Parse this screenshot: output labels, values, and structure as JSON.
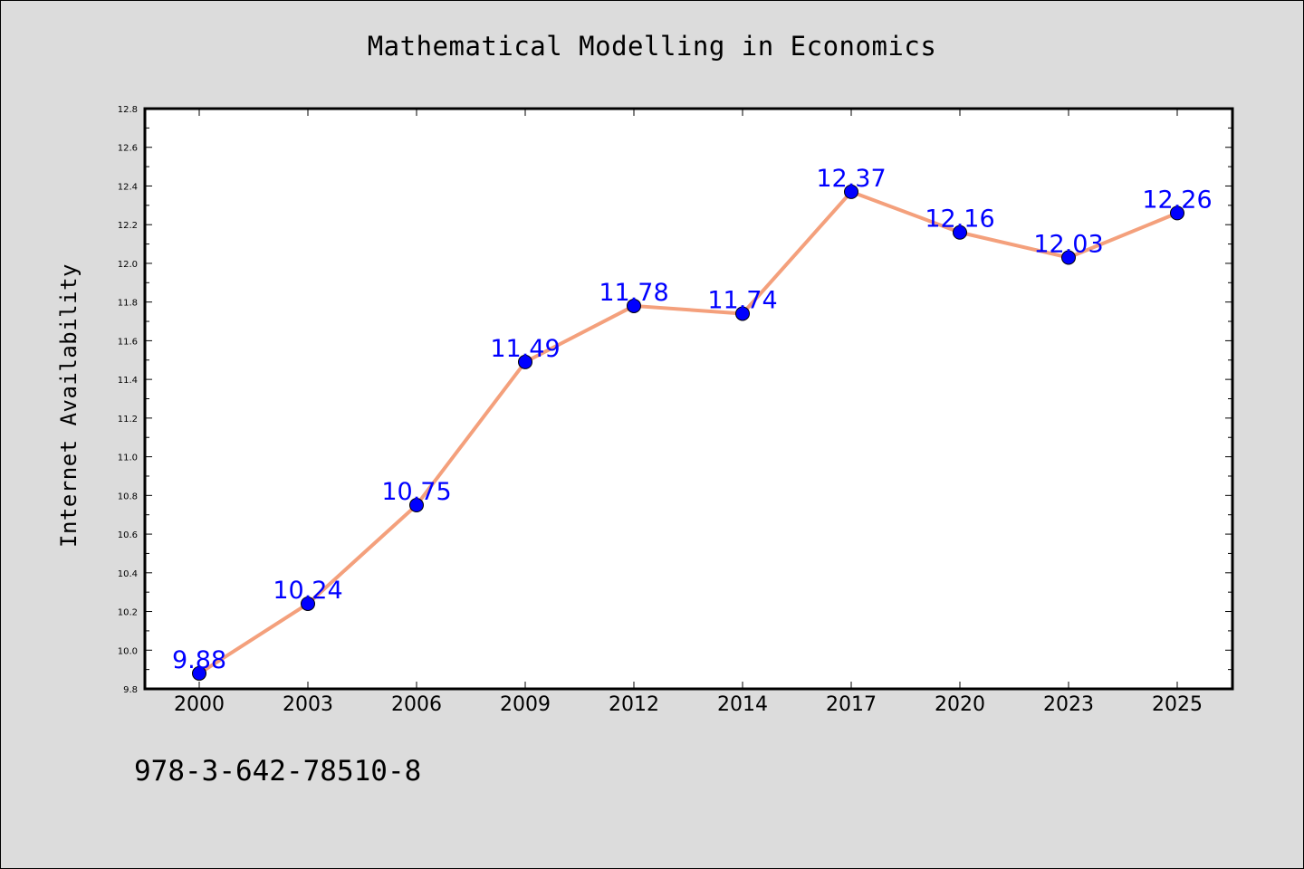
{
  "chart_data": {
    "type": "line",
    "title": "Mathematical Modelling in Economics",
    "xlabel": "",
    "ylabel": "Internet Availability",
    "categories": [
      "2000",
      "2003",
      "2006",
      "2009",
      "2012",
      "2014",
      "2017",
      "2020",
      "2023",
      "2025"
    ],
    "series": [
      {
        "values": [
          9.88,
          10.24,
          10.75,
          11.49,
          11.78,
          11.74,
          12.37,
          12.16,
          12.03,
          12.26
        ],
        "line_color": "#f4a07c",
        "marker_color": "#0000ff"
      }
    ],
    "data_labels": [
      "9.88",
      "10.24",
      "10.75",
      "11.49",
      "11.78",
      "11.74",
      "12.37",
      "12.16",
      "12.03",
      "12.26"
    ],
    "ylim": [
      9.8,
      12.8
    ],
    "yticks": [
      "9.8",
      "10.0",
      "10.2",
      "10.4",
      "10.6",
      "10.8",
      "11.0",
      "11.2",
      "11.4",
      "11.6",
      "11.8",
      "12.0",
      "12.2",
      "12.4",
      "12.6",
      "12.8"
    ],
    "grid": false,
    "label_color": "#0000ff"
  },
  "footer": {
    "isbn": "978-3-642-78510-8"
  }
}
